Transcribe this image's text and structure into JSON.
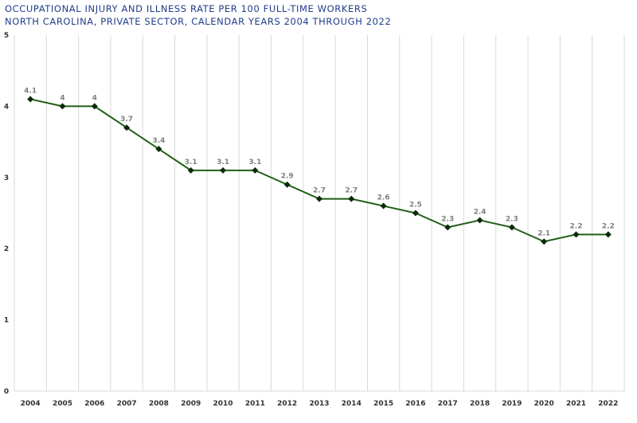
{
  "chart_data": {
    "type": "line",
    "title_lines": [
      "OCCUPATIONAL INJURY AND ILLNESS RATE PER 100 FULL-TIME WORKERS",
      "NORTH CAROLINA, PRIVATE SECTOR, CALENDAR YEARS 2004 THROUGH 2022"
    ],
    "categories": [
      "2004",
      "2005",
      "2006",
      "2007",
      "2008",
      "2009",
      "2010",
      "2011",
      "2012",
      "2013",
      "2014",
      "2015",
      "2016",
      "2017",
      "2018",
      "2019",
      "2020",
      "2021",
      "2022"
    ],
    "series": [
      {
        "values": [
          4.1,
          4,
          4,
          3.7,
          3.4,
          3.1,
          3.1,
          3.1,
          2.9,
          2.7,
          2.7,
          2.6,
          2.5,
          2.3,
          2.4,
          2.3,
          2.1,
          2.2,
          2.2
        ],
        "color": "#1f5f14"
      }
    ],
    "data_labels": [
      "4.1",
      "4",
      "4",
      "3.7",
      "3.4",
      "3.1",
      "3.1",
      "3.1",
      "2.9",
      "2.7",
      "2.7",
      "2.6",
      "2.5",
      "2.3",
      "2.4",
      "2.3",
      "2.1",
      "2.2",
      "2.2"
    ],
    "y_ticks": [
      "0",
      "1",
      "2",
      "3",
      "4",
      "5"
    ],
    "ylim": [
      0,
      5
    ],
    "grid": "vertical",
    "legend": "none",
    "marker": "diamond",
    "colors": {
      "title": "#1f3d8a",
      "line": "#1f5f14",
      "marker": "#0a2a0a",
      "grid": "#d9d9d9",
      "data_label": "#7f7f7f",
      "tick": "#333333"
    }
  }
}
